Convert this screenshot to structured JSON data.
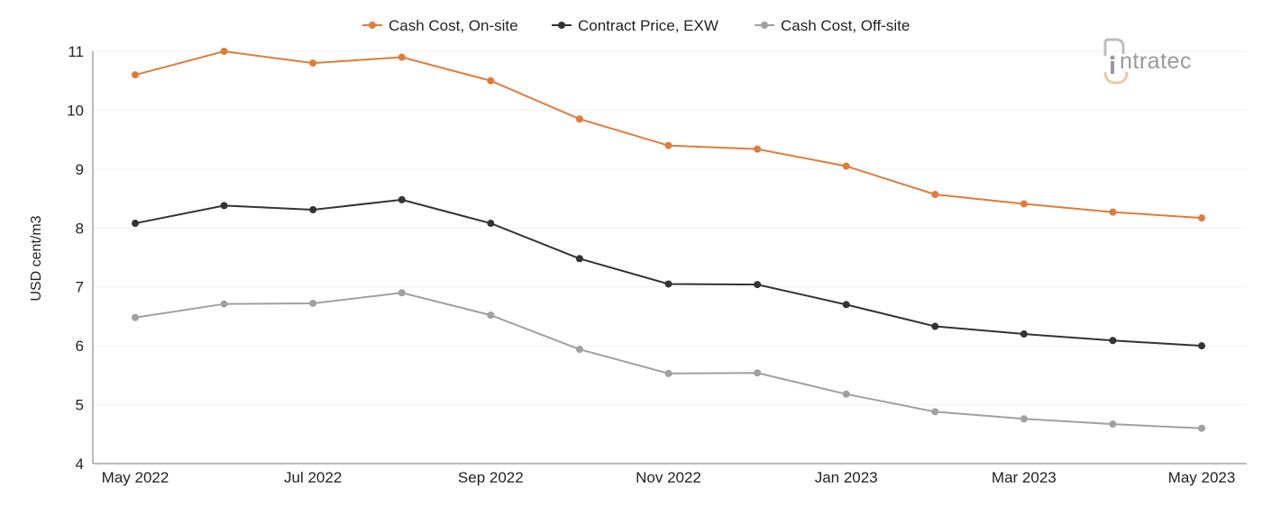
{
  "chart_data": {
    "type": "line",
    "categories": [
      "May 2022",
      "Jun 2022",
      "Jul 2022",
      "Aug 2022",
      "Sep 2022",
      "Oct 2022",
      "Nov 2022",
      "Dec 2022",
      "Jan 2023",
      "Feb 2023",
      "Mar 2023",
      "Apr 2023",
      "May 2023"
    ],
    "x_tick_labels": [
      "May 2022",
      "",
      "Jul 2022",
      "",
      "Sep 2022",
      "",
      "Nov 2022",
      "",
      "Jan 2023",
      "",
      "Mar 2023",
      "",
      "May 2023"
    ],
    "ylabel": "USD cent/m3",
    "xlabel": "",
    "title": "",
    "ylim": [
      4,
      11
    ],
    "yticks": [
      4,
      5,
      6,
      7,
      8,
      9,
      10,
      11
    ],
    "grid": true,
    "legend_position": "top-center",
    "series": [
      {
        "name": "Cash Cost, On-site",
        "color": "#e07b39",
        "values": [
          10.6,
          11.0,
          10.8,
          10.9,
          10.5,
          9.85,
          9.4,
          9.34,
          9.05,
          8.57,
          8.41,
          8.27,
          8.17
        ]
      },
      {
        "name": "Contract Price, EXW",
        "color": "#333333",
        "values": [
          8.08,
          8.38,
          8.31,
          8.48,
          8.08,
          7.48,
          7.05,
          7.04,
          6.7,
          6.33,
          6.2,
          6.09,
          6.0
        ]
      },
      {
        "name": "Cash Cost, Off-site",
        "color": "#a0a0a0",
        "values": [
          6.48,
          6.71,
          6.72,
          6.9,
          6.52,
          5.94,
          5.53,
          5.54,
          5.18,
          4.88,
          4.76,
          4.67,
          4.6
        ]
      }
    ]
  },
  "logo": {
    "text": "ntratec",
    "color": "#9a9a9a",
    "accent": "#e9c9a8"
  }
}
